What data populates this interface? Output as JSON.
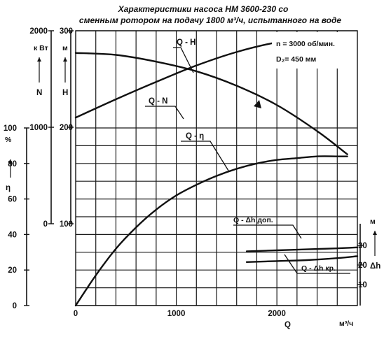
{
  "chart_data": {
    "type": "line",
    "title": "Характеристики насоса НМ 3600-230 со",
    "subtitle": "сменным ротором на подачу 1800 м³/ч, испытанного на воде",
    "annotations": [
      "n = 3000 об/мин.",
      "D₂= 450 мм"
    ],
    "x_axis": {
      "label": "Q",
      "unit": "м³/ч",
      "range": [
        0,
        2800
      ],
      "ticks": [
        "0",
        "1000",
        "2000"
      ]
    },
    "axes": {
      "N": {
        "label": "N",
        "unit": "к Вт",
        "range": [
          0,
          2000
        ],
        "ticks": [
          "0",
          "1000",
          "2000"
        ]
      },
      "H": {
        "label": "H",
        "unit": "м",
        "range": [
          100,
          300
        ],
        "ticks": [
          "100",
          "200",
          "300"
        ]
      },
      "eta": {
        "label": "η",
        "unit": "%",
        "range": [
          0,
          100
        ],
        "ticks": [
          "0",
          "20",
          "40",
          "60",
          "80",
          "100"
        ]
      },
      "dh": {
        "label": "Δh",
        "unit": "м",
        "ticks": [
          "10",
          "20",
          "30"
        ]
      }
    },
    "series": [
      {
        "name": "Q - H",
        "axis": "H",
        "x": [
          0,
          400,
          800,
          1200,
          1600,
          2000,
          2400,
          2700
        ],
        "values": [
          277,
          275,
          268,
          258,
          243,
          223,
          196,
          172
        ]
      },
      {
        "name": "Q - N",
        "axis": "N",
        "x": [
          0,
          400,
          800,
          1200,
          1600,
          2000,
          2400,
          2700
        ],
        "values": [
          1100,
          1290,
          1470,
          1640,
          1780,
          1880,
          1930,
          1940
        ]
      },
      {
        "name": "Q - η",
        "axis": "eta",
        "x": [
          0,
          200,
          400,
          600,
          800,
          1000,
          1200,
          1400,
          1600,
          1800,
          2000,
          2200,
          2400,
          2600,
          2700
        ],
        "values": [
          0,
          17,
          32,
          44,
          54,
          62,
          68,
          73,
          77,
          80,
          82,
          83,
          84,
          84,
          84
        ]
      },
      {
        "name": "Q - Δh доп.",
        "axis": "dh",
        "x": [
          1700,
          2000,
          2300,
          2600,
          2800
        ],
        "values": [
          27,
          27.5,
          28,
          28.5,
          29
        ]
      },
      {
        "name": "Q - Δh кр.",
        "axis": "dh",
        "x": [
          1700,
          2000,
          2300,
          2600,
          2800
        ],
        "values": [
          21.5,
          22,
          22.5,
          23.5,
          24.5
        ]
      }
    ],
    "grid": true,
    "legend": "none"
  }
}
